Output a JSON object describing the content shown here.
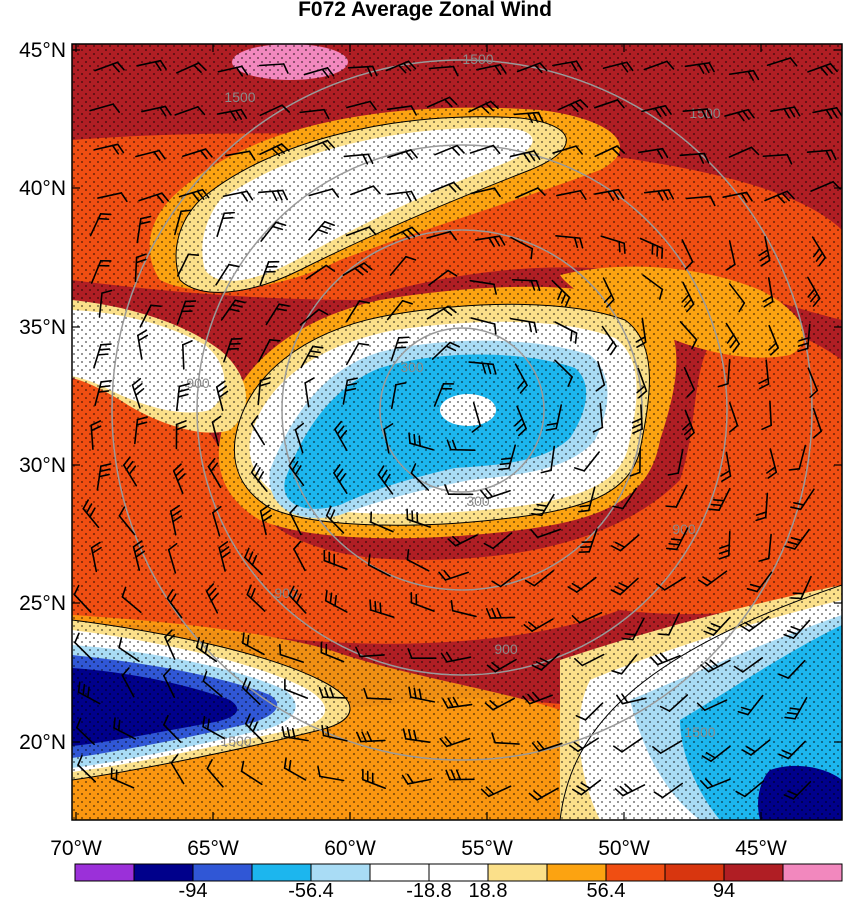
{
  "chart_data": {
    "type": "heatmap",
    "title": "F072 Average Zonal Wind",
    "y_tick_labels": [
      "45°N",
      "40°N",
      "35°N",
      "30°N",
      "25°N",
      "20°N"
    ],
    "x_tick_labels": [
      "70°W",
      "65°W",
      "60°W",
      "55°W",
      "50°W",
      "45°W"
    ],
    "colorbar": {
      "colors": [
        "#9b30d9",
        "#00008b",
        "#3057d6",
        "#1cb6ee",
        "#a9dcf5",
        "#ffffff",
        "#ffffff",
        "#fbe08a",
        "#fca311",
        "#f04e12",
        "#d8360f",
        "#b01e24",
        "#f288be"
      ],
      "tick_labels": [
        "-94",
        "-56.4",
        "-18.8",
        "18.8",
        "56.4",
        "94"
      ]
    },
    "contour_labels": [
      "1500",
      "1500",
      "1500",
      "900",
      "900",
      "900",
      "900",
      "300",
      "300",
      "1500",
      "1500"
    ],
    "overlays": [
      "range-rings",
      "wind-barbs",
      "significance-stippling"
    ]
  }
}
